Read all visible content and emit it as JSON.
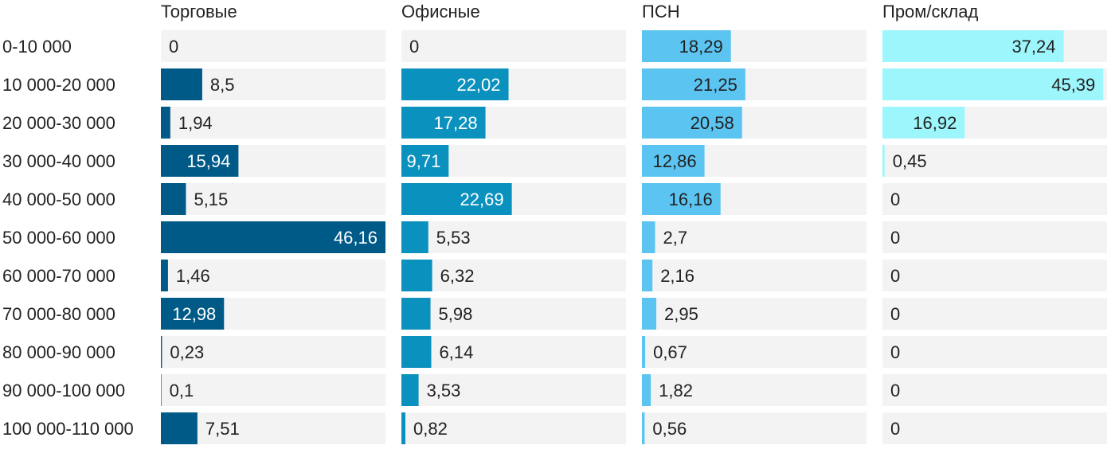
{
  "chart_data": {
    "type": "bar",
    "orientation": "horizontal",
    "categories": [
      "0-10 000",
      "10 000-20 000",
      "20 000-30 000",
      "30 000-40 000",
      "40 000-50 000",
      "50 000-60 000",
      "60 000-70 000",
      "70 000-80 000",
      "80 000-90 000",
      "90 000-100 000",
      "100 000-110 000"
    ],
    "xlim": [
      0,
      46.16
    ],
    "series": [
      {
        "name": "Торговые",
        "color": "#005a87",
        "values": [
          0,
          8.5,
          1.94,
          15.94,
          5.15,
          46.16,
          1.46,
          12.98,
          0.23,
          0.1,
          7.51
        ],
        "labels": [
          "0",
          "8,5",
          "1,94",
          "15,94",
          "5,15",
          "46,16",
          "1,46",
          "12,98",
          "0,23",
          "0,1",
          "7,51"
        ]
      },
      {
        "name": "Офисные",
        "color": "#0a91bd",
        "values": [
          0,
          22.02,
          17.28,
          9.71,
          22.69,
          5.53,
          6.32,
          5.98,
          6.14,
          3.53,
          0.82
        ],
        "labels": [
          "0",
          "22,02",
          "17,28",
          "9,71",
          "22,69",
          "5,53",
          "6,32",
          "5,98",
          "6,14",
          "3,53",
          "0,82"
        ]
      },
      {
        "name": "ПСН",
        "color": "#5bc4f0",
        "values": [
          18.29,
          21.25,
          20.58,
          12.86,
          16.16,
          2.7,
          2.16,
          2.95,
          0.67,
          1.82,
          0.56
        ],
        "labels": [
          "18,29",
          "21,25",
          "20,58",
          "12,86",
          "16,16",
          "2,7",
          "2,16",
          "2,95",
          "0,67",
          "1,82",
          "0,56"
        ]
      },
      {
        "name": "Пром/склад",
        "color": "#9df6fb",
        "values": [
          37.24,
          45.39,
          16.92,
          0.45,
          0,
          0,
          0,
          0,
          0,
          0,
          0
        ],
        "labels": [
          "37,24",
          "45,39",
          "16,92",
          "0,45",
          "0",
          "0",
          "0",
          "0",
          "0",
          "0",
          "0"
        ]
      }
    ],
    "background_track_color": "#f3f3f3",
    "label_light_color": "#ffffff",
    "label_dark_color": "#222222"
  }
}
